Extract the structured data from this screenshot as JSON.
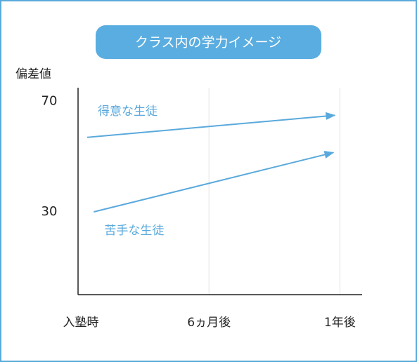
{
  "chart_data": {
    "type": "line",
    "title": "クラス内の学力イメージ",
    "y_label": "偏差値",
    "xlim": [
      0,
      2.17
    ],
    "xticks": [
      {
        "value": 0,
        "label": "入塾時"
      },
      {
        "value": 1,
        "label": "6ヵ月後"
      },
      {
        "value": 2,
        "label": "1年後"
      }
    ],
    "ylim": [
      0,
      75
    ],
    "yticks": [
      70,
      30
    ],
    "grid": true,
    "series": [
      {
        "name": "得意な生徒",
        "color": "#5aa9dc",
        "x": [
          0.07,
          1.96
        ],
        "values": [
          57,
          65
        ]
      },
      {
        "name": "苦手な生徒",
        "color": "#5aa9dc",
        "x": [
          0.12,
          1.95
        ],
        "values": [
          30,
          51.5
        ]
      }
    ]
  }
}
